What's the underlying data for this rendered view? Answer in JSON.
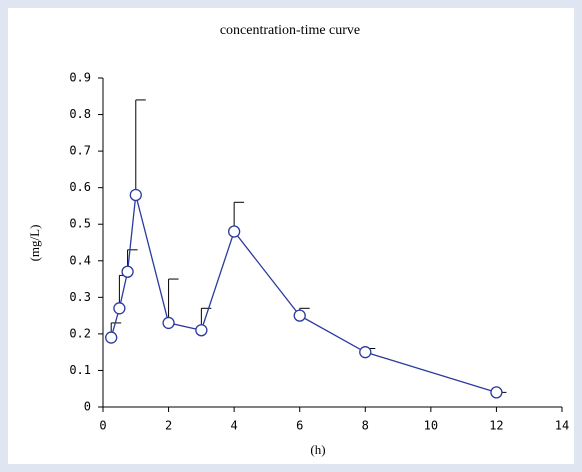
{
  "chart_data": {
    "type": "line",
    "title": "concentration-time curve",
    "x_label": "(h)",
    "y_label": "(mg/L)",
    "x": [
      0.25,
      0.5,
      0.75,
      1,
      2,
      3,
      4,
      6,
      8,
      12
    ],
    "series": [
      {
        "color": "#2b3a9e",
        "values": [
          0.19,
          0.27,
          0.37,
          0.58,
          0.23,
          0.21,
          0.48,
          0.25,
          0.15,
          0.04
        ],
        "errors": [
          0.04,
          0.09,
          0.06,
          0.26,
          0.12,
          0.06,
          0.08,
          0.02,
          0.01,
          0
        ]
      }
    ],
    "xlim": [
      0,
      14
    ],
    "xticks": [
      0,
      2,
      4,
      6,
      8,
      10,
      12,
      14
    ],
    "ylim": [
      0,
      0.9
    ],
    "yticks": [
      0,
      0.1,
      0.2,
      0.3,
      0.4,
      0.5,
      0.6,
      0.7,
      0.8,
      0.9
    ]
  }
}
